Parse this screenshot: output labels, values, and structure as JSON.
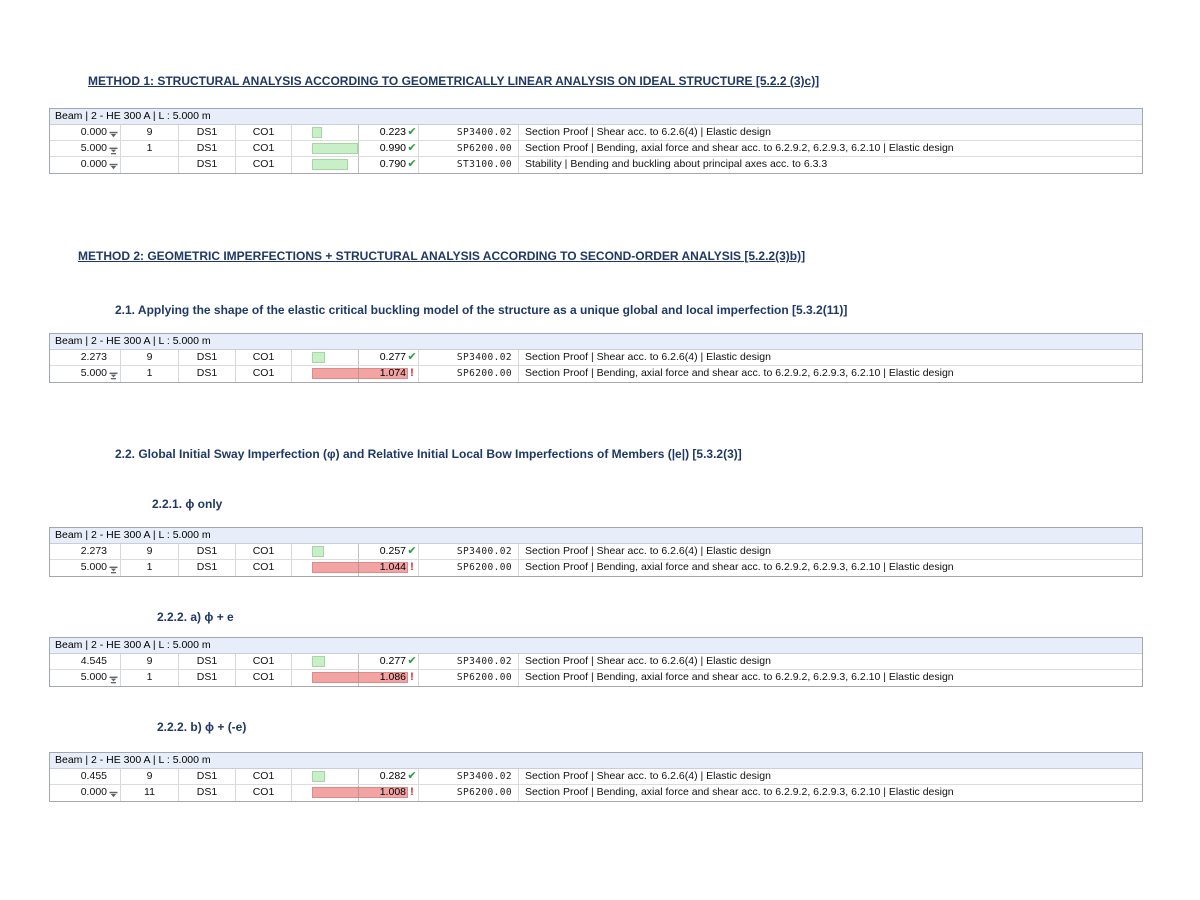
{
  "colors": {
    "heading_navy": "#1f3864",
    "table_header_bg": "#e8eef9",
    "bar_green": "#c9efc9",
    "bar_red": "#f2a3a3",
    "check_green": "#21a038",
    "warning_red": "#e02222"
  },
  "headings": {
    "method1": "METHOD 1: STRUCTURAL ANALYSIS ACCORDING TO GEOMETRICALLY LINEAR ANALYSIS ON IDEAL STRUCTURE [5.2.2 (3)c)]",
    "method2": "METHOD 2: GEOMETRIC IMPERFECTIONS + STRUCTURAL ANALYSIS ACCORDING TO SECOND-ORDER ANALYSIS [5.2.2(3)b)]",
    "s21": "2.1. Applying the shape of the elastic critical buckling model of the structure as a unique global and local imperfection [5.3.2(11)]",
    "s22": "2.2. Global Initial Sway Imperfection (φ) and Relative Initial Local Bow Imperfections of Members (|e|) [5.3.2(3)]",
    "s221": "2.2.1. ϕ only",
    "s222a": "2.2.2. a) ϕ + e",
    "s222b": "2.2.2. b) ϕ + (-e)"
  },
  "status_icons": {
    "ok": "check-icon",
    "fail": "warning-icon"
  },
  "tables": [
    {
      "name": "method1-results",
      "title": "Beam | 2 - HE 300 A | L : 5.000 m",
      "rows": [
        {
          "x": "0.000",
          "x_icon": "start",
          "no": "9",
          "ds": "DS1",
          "co": "CO1",
          "ratio": "0.223",
          "status": "ok",
          "code": "SP3400.02",
          "desc": "Section Proof | Shear acc. to 6.2.6(4) | Elastic design"
        },
        {
          "x": "5.000",
          "x_icon": "extreme",
          "no": "1",
          "ds": "DS1",
          "co": "CO1",
          "ratio": "0.990",
          "status": "ok",
          "code": "SP6200.00",
          "desc": "Section Proof | Bending, axial force and shear acc. to 6.2.9.2, 6.2.9.3, 6.2.10 | Elastic design"
        },
        {
          "x": "0.000",
          "x_icon": "start",
          "no": "",
          "ds": "DS1",
          "co": "CO1",
          "ratio": "0.790",
          "status": "ok",
          "code": "ST3100.00",
          "desc": "Stability | Bending and buckling about principal axes acc. to 6.3.3"
        }
      ]
    },
    {
      "name": "method2-buckling-shape-results",
      "title": "Beam | 2 - HE 300 A | L : 5.000 m",
      "rows": [
        {
          "x": "2.273",
          "x_icon": null,
          "no": "9",
          "ds": "DS1",
          "co": "CO1",
          "ratio": "0.277",
          "status": "ok",
          "code": "SP3400.02",
          "desc": "Section Proof | Shear acc. to 6.2.6(4) | Elastic design"
        },
        {
          "x": "5.000",
          "x_icon": "extreme",
          "no": "1",
          "ds": "DS1",
          "co": "CO1",
          "ratio": "1.074",
          "status": "fail",
          "code": "SP6200.00",
          "desc": "Section Proof | Bending, axial force and shear acc. to 6.2.9.2, 6.2.9.3, 6.2.10 | Elastic design"
        }
      ]
    },
    {
      "name": "phi-only-results",
      "title": "Beam | 2 - HE 300 A | L : 5.000 m",
      "rows": [
        {
          "x": "2.273",
          "x_icon": null,
          "no": "9",
          "ds": "DS1",
          "co": "CO1",
          "ratio": "0.257",
          "status": "ok",
          "code": "SP3400.02",
          "desc": "Section Proof | Shear acc. to 6.2.6(4) | Elastic design"
        },
        {
          "x": "5.000",
          "x_icon": "extreme",
          "no": "1",
          "ds": "DS1",
          "co": "CO1",
          "ratio": "1.044",
          "status": "fail",
          "code": "SP6200.00",
          "desc": "Section Proof | Bending, axial force and shear acc. to 6.2.9.2, 6.2.9.3, 6.2.10 | Elastic design"
        }
      ]
    },
    {
      "name": "phi-plus-e-results",
      "title": "Beam | 2 - HE 300 A | L : 5.000 m",
      "rows": [
        {
          "x": "4.545",
          "x_icon": null,
          "no": "9",
          "ds": "DS1",
          "co": "CO1",
          "ratio": "0.277",
          "status": "ok",
          "code": "SP3400.02",
          "desc": "Section Proof | Shear acc. to 6.2.6(4) | Elastic design"
        },
        {
          "x": "5.000",
          "x_icon": "extreme",
          "no": "1",
          "ds": "DS1",
          "co": "CO1",
          "ratio": "1.086",
          "status": "fail",
          "code": "SP6200.00",
          "desc": "Section Proof | Bending, axial force and shear acc. to 6.2.9.2, 6.2.9.3, 6.2.10 | Elastic design"
        }
      ]
    },
    {
      "name": "phi-plus-minus-e-results",
      "title": "Beam | 2 - HE 300 A | L : 5.000 m",
      "rows": [
        {
          "x": "0.455",
          "x_icon": null,
          "no": "9",
          "ds": "DS1",
          "co": "CO1",
          "ratio": "0.282",
          "status": "ok",
          "code": "SP3400.02",
          "desc": "Section Proof | Shear acc. to 6.2.6(4) | Elastic design"
        },
        {
          "x": "0.000",
          "x_icon": "start",
          "no": "11",
          "ds": "DS1",
          "co": "CO1",
          "ratio": "1.008",
          "status": "fail",
          "code": "SP6200.00",
          "desc": "Section Proof | Bending, axial force and shear acc. to 6.2.9.2, 6.2.9.3, 6.2.10 | Elastic design"
        }
      ]
    }
  ]
}
